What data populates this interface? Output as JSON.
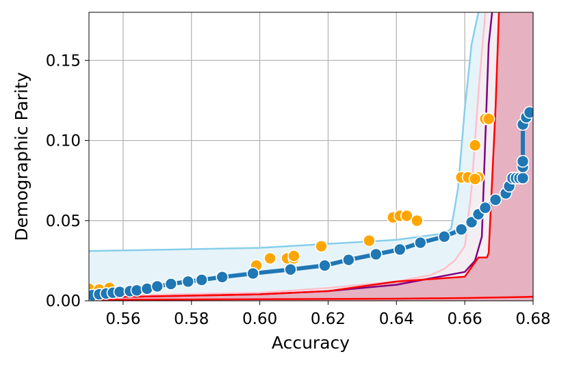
{
  "chart_data": {
    "type": "scatter",
    "xlabel": "Accuracy",
    "ylabel": "Demographic Parity",
    "xlim": [
      0.55,
      0.68
    ],
    "ylim": [
      0.0,
      0.18
    ],
    "grid": true,
    "x_ticks": [
      "0.56",
      "0.58",
      "0.60",
      "0.62",
      "0.64",
      "0.66",
      "0.68"
    ],
    "y_ticks": [
      "0.00",
      "0.05",
      "0.10",
      "0.15"
    ],
    "colors": {
      "skyblue": "#87ceeb",
      "skyblue_fill": "#e6f4fa",
      "pink": "#ffc0cb",
      "pink_fill": "#f2eef2",
      "purple": "#800080",
      "red": "#ff0000",
      "crimson_fill": "#e6b1c1",
      "orange": "#ffa500",
      "blue": "#1f77b4"
    },
    "series": [
      {
        "kind": "line",
        "color_key": "skyblue",
        "fill_key": "skyblue_fill",
        "x": [
          0.55,
          0.6,
          0.64,
          0.654,
          0.656,
          0.658,
          0.66,
          0.662,
          0.664
        ],
        "y": [
          0.031,
          0.033,
          0.038,
          0.042,
          0.045,
          0.07,
          0.12,
          0.16,
          0.18
        ]
      },
      {
        "kind": "line",
        "color_key": "pink",
        "fill_key": "pink_fill",
        "x": [
          0.55,
          0.6,
          0.62,
          0.64,
          0.65,
          0.654,
          0.657,
          0.66,
          0.662,
          0.664,
          0.666
        ],
        "y": [
          0.003,
          0.005,
          0.008,
          0.012,
          0.016,
          0.02,
          0.025,
          0.034,
          0.07,
          0.13,
          0.18
        ]
      },
      {
        "kind": "line",
        "color_key": "purple",
        "x": [
          0.55,
          0.6,
          0.62,
          0.64,
          0.66,
          0.663,
          0.665,
          0.666,
          0.667,
          0.668
        ],
        "y": [
          0.002,
          0.004,
          0.006,
          0.01,
          0.018,
          0.025,
          0.04,
          0.1,
          0.16,
          0.18
        ]
      },
      {
        "kind": "line",
        "color_key": "red",
        "fill_key": "crimson_fill",
        "x": [
          0.55,
          0.6,
          0.62,
          0.63,
          0.64,
          0.66,
          0.664,
          0.6665,
          0.667,
          0.669,
          0.67
        ],
        "y": [
          0.002,
          0.004,
          0.006,
          0.009,
          0.012,
          0.015,
          0.027,
          0.027,
          0.03,
          0.12,
          0.18
        ]
      },
      {
        "kind": "line",
        "color_key": "red",
        "x": [
          0.55,
          0.6,
          0.64,
          0.66,
          0.675,
          0.68
        ],
        "y": [
          0.0005,
          0.001,
          0.0013,
          0.0017,
          0.0022,
          0.0025
        ]
      },
      {
        "kind": "points",
        "color_key": "orange",
        "x": [
          0.55,
          0.553,
          0.556,
          0.599,
          0.603,
          0.608,
          0.61,
          0.61,
          0.618,
          0.632,
          0.639,
          0.641,
          0.643,
          0.646,
          0.659,
          0.661,
          0.663,
          0.664,
          0.663,
          0.666,
          0.667
        ],
        "y": [
          0.0075,
          0.007,
          0.008,
          0.022,
          0.0265,
          0.0265,
          0.0265,
          0.028,
          0.034,
          0.0375,
          0.052,
          0.053,
          0.053,
          0.05,
          0.077,
          0.077,
          0.097,
          0.077,
          0.076,
          0.1135,
          0.1135
        ]
      },
      {
        "kind": "line_points",
        "color_key": "blue",
        "x": [
          0.551,
          0.553,
          0.555,
          0.557,
          0.559,
          0.562,
          0.564,
          0.567,
          0.57,
          0.574,
          0.579,
          0.583,
          0.589,
          0.598,
          0.609,
          0.619,
          0.626,
          0.634,
          0.641,
          0.647,
          0.654,
          0.659,
          0.662,
          0.664,
          0.666,
          0.669,
          0.672,
          0.673,
          0.674,
          0.675,
          0.676,
          0.677,
          0.677,
          0.677,
          0.677,
          0.678,
          0.679
        ],
        "y": [
          0.0035,
          0.004,
          0.0045,
          0.005,
          0.0055,
          0.006,
          0.0065,
          0.0075,
          0.009,
          0.0105,
          0.012,
          0.013,
          0.0148,
          0.017,
          0.0195,
          0.022,
          0.0255,
          0.029,
          0.032,
          0.0362,
          0.04,
          0.0445,
          0.049,
          0.054,
          0.058,
          0.063,
          0.067,
          0.0715,
          0.0765,
          0.0765,
          0.0765,
          0.0765,
          0.0835,
          0.087,
          0.11,
          0.1145,
          0.1175
        ]
      }
    ]
  }
}
